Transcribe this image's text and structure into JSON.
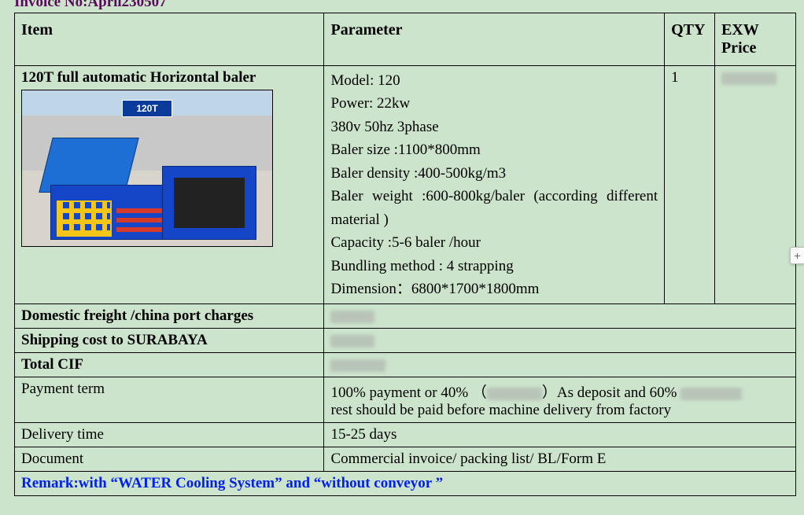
{
  "invoice_no_label": "Invoice No:April230507",
  "headers": {
    "item": "Item",
    "parameter": "Parameter",
    "qty": "QTY",
    "price": "EXW Price"
  },
  "product": {
    "title": "120T full automatic Horizontal baler",
    "sign": "120T",
    "qty": "1",
    "params": {
      "model": "Model: 120",
      "power": "Power: 22kw",
      "voltage": "380v 50hz 3phase",
      "size": "Baler size :1100*800mm",
      "density": "Baler density :400-500kg/m3",
      "weight": "Baler weight :600-800kg/baler (according different material )",
      "capacity": "Capacity :5-6 baler /hour",
      "bundle": "Bundling method : 4 strapping",
      "dim": "Dimension：6800*1700*1800mm"
    }
  },
  "rows": {
    "domestic": "Domestic freight /china port charges",
    "shipping": "Shipping cost to SURABAYA",
    "cif": "Total CIF",
    "payment_label": "Payment term",
    "payment_a": "100% payment or 40% （",
    "payment_b": "）As deposit and 60% ",
    "payment_c": "rest should be paid before machine delivery from factory",
    "delivery_label": "Delivery time",
    "delivery_value": "15-25 days",
    "doc_label": "Document",
    "doc_value": "Commercial invoice/ packing list/ BL/Form E"
  },
  "remark": {
    "a": "Remark:with ",
    "b": "“WATER Cooling System”",
    "c": "and",
    "d": "“without conveyor ”"
  },
  "expand": "+"
}
